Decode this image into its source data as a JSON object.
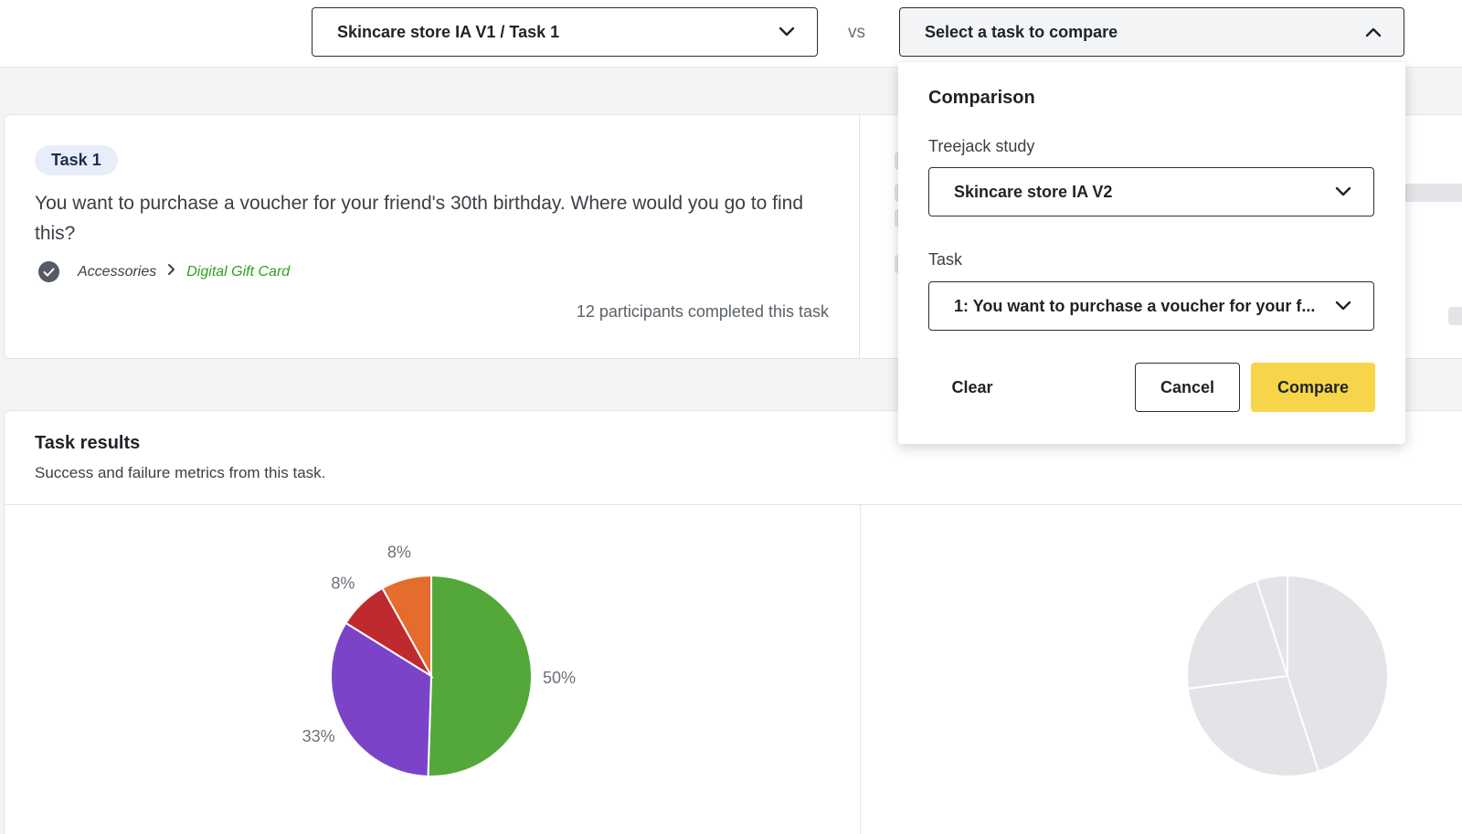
{
  "header": {
    "left_select": "Skincare store IA V1 / Task 1",
    "vs": "vs",
    "right_select": "Select a task to compare"
  },
  "task_card": {
    "badge": "Task 1",
    "question": "You want to purchase a voucher for your friend's 30th birthday. Where would you go to find this?",
    "path": [
      "Accessories",
      "Digital Gift Card"
    ],
    "participants": "12 participants completed this task"
  },
  "results": {
    "title": "Task results",
    "subtitle": "Success and failure metrics from this task."
  },
  "comparison_panel": {
    "title": "Comparison",
    "study_label": "Treejack study",
    "study_value": "Skincare store IA V2",
    "task_label": "Task",
    "task_value": "1: You want to purchase a voucher for your f...",
    "clear_label": "Clear",
    "cancel_label": "Cancel",
    "compare_label": "Compare"
  },
  "colors": {
    "accent_yellow": "#f7d54a",
    "success_green": "#54a83a",
    "purple": "#7b44c8",
    "red": "#be2a2d",
    "orange": "#e46c2c",
    "placeholder_gray": "#e2e4e7"
  },
  "chart_data": [
    {
      "type": "pie",
      "slices": [
        {
          "value": 50,
          "label": "50%",
          "color": "#54a83a"
        },
        {
          "value": 33,
          "label": "33%",
          "color": "#7b44c8"
        },
        {
          "value": 8,
          "label": "8%",
          "color": "#be2a2d"
        },
        {
          "value": 8,
          "label": "8%",
          "color": "#e46c2c"
        }
      ]
    },
    {
      "type": "pie",
      "note_state": "placeholder",
      "slices": [
        {
          "value": 45,
          "color": "#e2e4e7"
        },
        {
          "value": 28,
          "color": "#e2e4e7"
        },
        {
          "value": 22,
          "color": "#e2e4e7"
        },
        {
          "value": 5,
          "color": "#e2e4e7"
        }
      ]
    }
  ]
}
